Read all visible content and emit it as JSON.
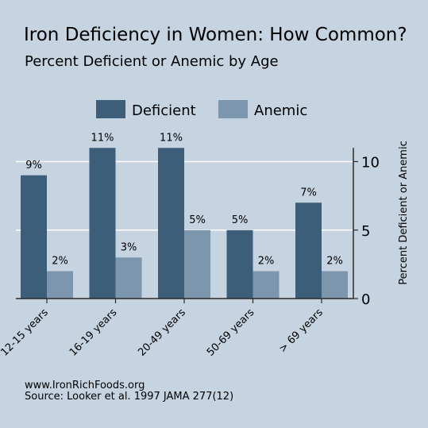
{
  "chart_data": {
    "type": "bar",
    "title": "Iron Deficiency in Women: How Common?",
    "subtitle": "Percent Deficient or Anemic by Age",
    "ylabel": "Percent Deficient or Anemic",
    "xlabel": "",
    "categories": [
      "12-15 years",
      "16-19 years",
      "20-49 years",
      "50-69 years",
      "> 69 years"
    ],
    "series": [
      {
        "name": "Deficient",
        "values": [
          9,
          11,
          11,
          5,
          7
        ],
        "labels": [
          "9%",
          "11%",
          "11%",
          "5%",
          "7%"
        ],
        "color": "#3c5e78"
      },
      {
        "name": "Anemic",
        "values": [
          2,
          3,
          5,
          2,
          2
        ],
        "labels": [
          "2%",
          "3%",
          "5%",
          "2%",
          "2%"
        ],
        "color": "#7c96ad"
      }
    ],
    "ylim": [
      0,
      11
    ],
    "yticks": [
      0,
      5,
      10
    ],
    "y_axis_position": "right",
    "grid": true,
    "legend_position": "top"
  },
  "footer": {
    "line1": "www.IronRichFoods.org",
    "line2": "Source: Looker et al. 1997 JAMA 277(12)"
  },
  "colors": {
    "background": "#c6d3e0",
    "gridline": "#ffffff",
    "axis": "#2b2b2b"
  }
}
